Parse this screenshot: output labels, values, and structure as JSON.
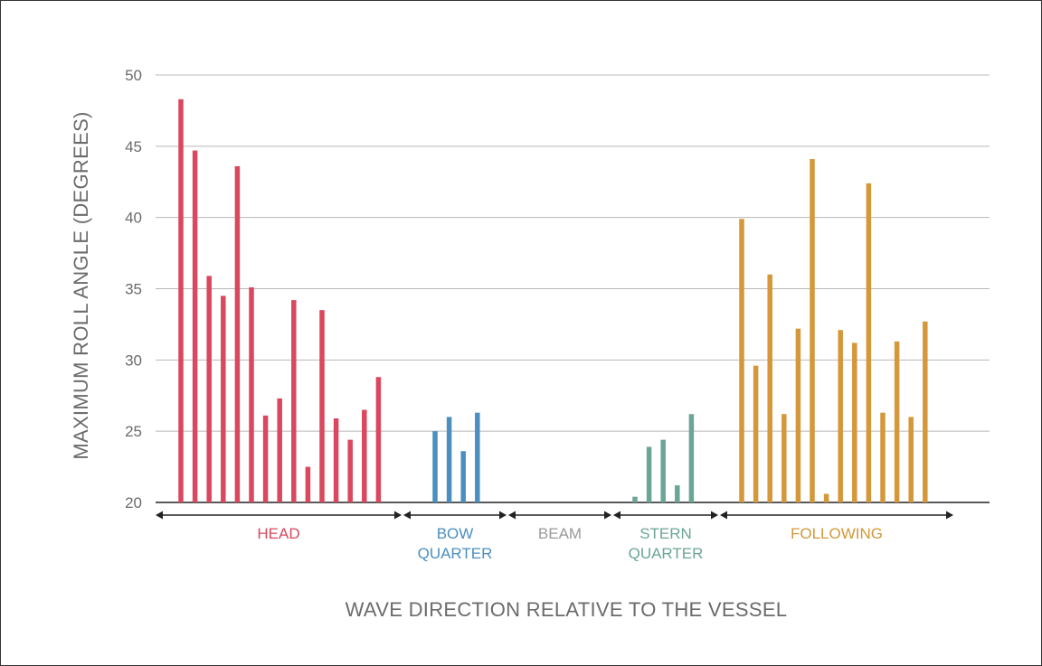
{
  "chart_data": {
    "type": "bar",
    "xlabel": "WAVE DIRECTION RELATIVE TO THE VESSEL",
    "ylabel": "MAXIMUM ROLL ANGLE (DEGREES)",
    "ylim": [
      20,
      50
    ],
    "yticks": [
      "20",
      "25",
      "30",
      "35",
      "40",
      "45",
      "50"
    ],
    "grid": true,
    "groups": [
      {
        "lines": [
          "HEAD"
        ],
        "color": "#d9485f",
        "values": [
          48.3,
          44.7,
          35.9,
          34.5,
          43.6,
          35.1,
          26.1,
          27.3,
          34.2,
          22.5,
          33.5,
          25.9,
          24.4,
          26.5,
          28.8
        ]
      },
      {
        "lines": [
          "BOW",
          "QUARTER"
        ],
        "color": "#4a8fc0",
        "values": [
          25.0,
          26.0,
          23.6,
          26.3
        ]
      },
      {
        "lines": [
          "BEAM"
        ],
        "color": "#9a9a9a",
        "values": []
      },
      {
        "lines": [
          "STERN",
          "QUARTER"
        ],
        "color": "#6ba596",
        "values": [
          20.4,
          23.9,
          24.4,
          21.2,
          26.2
        ]
      },
      {
        "lines": [
          "FOLLOWING"
        ],
        "color": "#d4973a",
        "values": [
          39.9,
          29.6,
          36.0,
          26.2,
          32.2,
          44.1,
          20.6,
          32.1,
          31.2,
          42.4,
          26.3,
          31.3,
          26.0,
          32.7
        ]
      }
    ]
  }
}
